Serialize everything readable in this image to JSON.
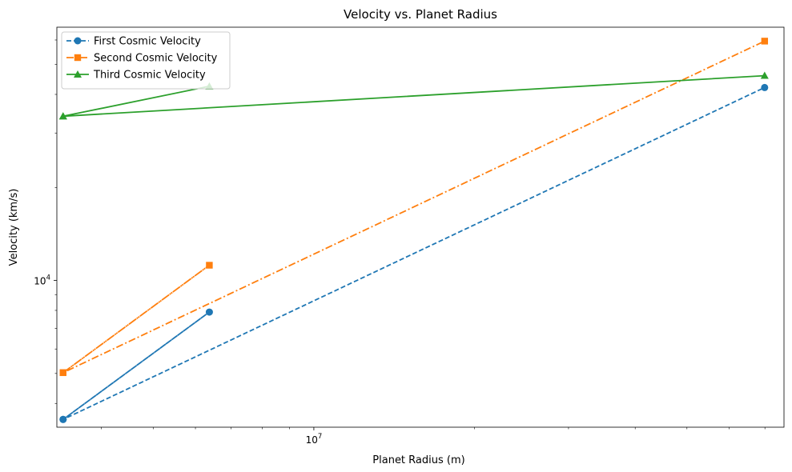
{
  "chart_data": {
    "type": "line",
    "title": "Velocity vs. Planet Radius",
    "xlabel": "Planet Radius (m)",
    "ylabel": "Velocity (km/s)",
    "x_scale": "log",
    "y_scale": "log",
    "xlim": [
      3300000,
      76000000
    ],
    "ylim": [
      3350,
      66000
    ],
    "x_ticks": [
      {
        "value": 10000000,
        "base": "10",
        "exp": "7"
      }
    ],
    "y_ticks": [
      {
        "value": 10000,
        "base": "10",
        "exp": "4"
      }
    ],
    "grid": false,
    "legend_position": "top-left",
    "series": [
      {
        "name": "First Cosmic Velocity",
        "color": "#1f77b4",
        "dash": "dashed",
        "marker": "circle",
        "x": [
          3390000,
          6371000,
          3390000,
          69911000
        ],
        "y": [
          3550,
          7900,
          3550,
          42100
        ]
      },
      {
        "name": "Second Cosmic Velocity",
        "color": "#ff7f0e",
        "dash": "dashdot",
        "marker": "square",
        "x": [
          3390000,
          6371000,
          3390000,
          69911000
        ],
        "y": [
          5030,
          11200,
          5030,
          59500
        ]
      },
      {
        "name": "Third Cosmic Velocity",
        "color": "#2ca02c",
        "dash": "solid",
        "marker": "triangle",
        "x": [
          3390000,
          6371000,
          3390000,
          69911000
        ],
        "y": [
          34000,
          42500,
          34000,
          46000
        ]
      }
    ]
  }
}
